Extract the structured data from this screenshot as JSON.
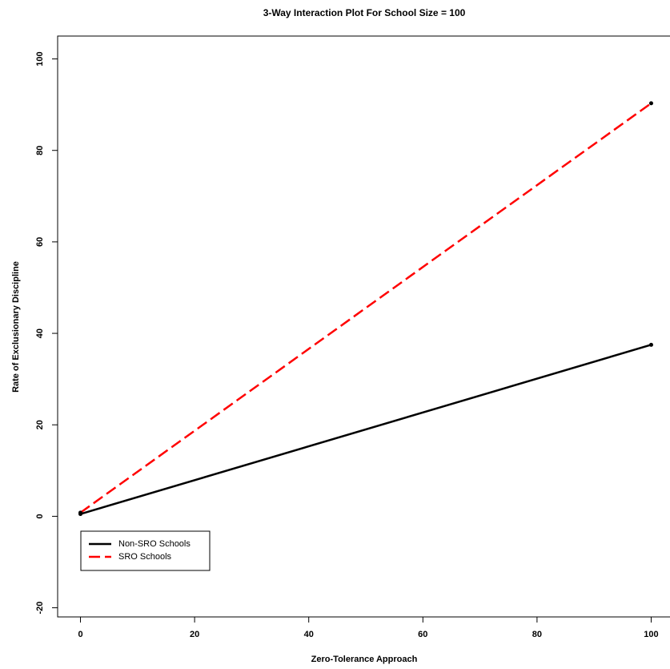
{
  "chart_data": {
    "type": "line",
    "title": "3-Way Interaction Plot For School Size = 100",
    "x_label": "Zero-Tolerance Approach",
    "y_label": "Rate of Exclusionary Discipline",
    "x": [
      0,
      100
    ],
    "series": [
      {
        "name": "Non-SRO Schools",
        "color": "#000000",
        "dash": "solid",
        "values": [
          0.5,
          37.5
        ]
      },
      {
        "name": "SRO Schools",
        "color": "#ff0000",
        "dash": "dashed",
        "values": [
          0.8,
          90.3
        ]
      }
    ],
    "xlim": [
      -4,
      104
    ],
    "xticks": [
      0,
      20,
      40,
      60,
      80,
      100
    ],
    "ylim": [
      -22,
      105
    ],
    "yticks": [
      -20,
      0,
      20,
      40,
      60,
      80,
      100
    ],
    "legend": "bottom-left",
    "points": true
  }
}
